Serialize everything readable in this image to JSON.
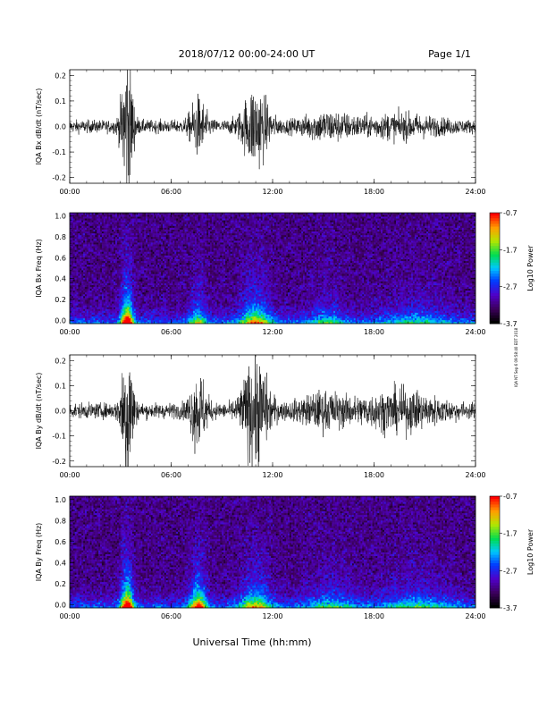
{
  "header": {
    "title": "2018/07/12  00:00-24:00 UT",
    "page": "Page 1/1"
  },
  "side_note": "IQA NT Sep 6 09:58:40 EDT 2018",
  "xlabel": "Universal Time (hh:mm)",
  "chart_data": [
    {
      "type": "line",
      "ylabel": "IQA Bx dB/dt (nT/sec)",
      "xlim": [
        0,
        24
      ],
      "ylim": [
        -0.2,
        0.2
      ],
      "x_ticks": [
        "00:00",
        "06:00",
        "12:00",
        "18:00",
        "24:00"
      ],
      "y_ticks": [
        "0.2",
        "0.1",
        "0.0",
        "-0.1",
        "-0.2"
      ],
      "bursts": [
        {
          "center": 3.4,
          "width": 0.35,
          "amplitude": 0.3
        },
        {
          "center": 7.6,
          "width": 0.5,
          "amplitude": 0.1
        },
        {
          "center": 11.0,
          "width": 0.8,
          "amplitude": 0.15
        },
        {
          "center": 15.2,
          "width": 1.5,
          "amplitude": 0.04
        },
        {
          "center": 19.5,
          "width": 2.5,
          "amplitude": 0.03
        }
      ],
      "baseline_amplitude": 0.025
    },
    {
      "type": "heatmap",
      "ylabel": "IQA Bx Freq (Hz)",
      "xlim": [
        0,
        24
      ],
      "ylim": [
        0.0,
        1.0
      ],
      "x_ticks": [
        "00:00",
        "06:00",
        "12:00",
        "18:00",
        "24:00"
      ],
      "y_ticks": [
        "1.0",
        "0.8",
        "0.6",
        "0.4",
        "0.2",
        "0.0"
      ],
      "colorbar": {
        "ticks": [
          "-0.7",
          "-1.7",
          "-2.7",
          "-3.7"
        ],
        "label": "Log10 Power",
        "range": [
          -3.7,
          -0.7
        ]
      },
      "bursts": [
        {
          "center": 3.4,
          "width": 0.35,
          "strength": 1.0
        },
        {
          "center": 7.6,
          "width": 0.5,
          "strength": 0.4
        },
        {
          "center": 11.0,
          "width": 0.9,
          "strength": 0.55
        },
        {
          "center": 15.2,
          "width": 1.0,
          "strength": 0.25
        },
        {
          "center": 20.5,
          "width": 2.0,
          "strength": 0.2
        }
      ]
    },
    {
      "type": "line",
      "ylabel": "IQA By dB/dt (nT/sec)",
      "xlim": [
        0,
        24
      ],
      "ylim": [
        -0.2,
        0.2
      ],
      "x_ticks": [
        "00:00",
        "06:00",
        "12:00",
        "18:00",
        "24:00"
      ],
      "y_ticks": [
        "0.2",
        "0.1",
        "0.0",
        "-0.1",
        "-0.2"
      ],
      "bursts": [
        {
          "center": 3.4,
          "width": 0.35,
          "amplitude": 0.3
        },
        {
          "center": 7.6,
          "width": 0.5,
          "amplitude": 0.14
        },
        {
          "center": 11.0,
          "width": 0.8,
          "amplitude": 0.2
        },
        {
          "center": 15.0,
          "width": 1.5,
          "amplitude": 0.05
        },
        {
          "center": 19.5,
          "width": 2.5,
          "amplitude": 0.06
        }
      ],
      "baseline_amplitude": 0.03
    },
    {
      "type": "heatmap",
      "ylabel": "IQA By Freq (Hz)",
      "xlim": [
        0,
        24
      ],
      "ylim": [
        0.0,
        1.0
      ],
      "x_ticks": [
        "00:00",
        "06:00",
        "12:00",
        "18:00",
        "24:00"
      ],
      "y_ticks": [
        "1.0",
        "0.8",
        "0.6",
        "0.4",
        "0.2",
        "0.0"
      ],
      "colorbar": {
        "ticks": [
          "-0.7",
          "-1.7",
          "-2.7",
          "-3.7"
        ],
        "label": "Log10 Power",
        "range": [
          -3.7,
          -0.7
        ]
      },
      "bursts": [
        {
          "center": 3.4,
          "width": 0.35,
          "strength": 1.0
        },
        {
          "center": 7.6,
          "width": 0.5,
          "strength": 0.7
        },
        {
          "center": 11.0,
          "width": 0.9,
          "strength": 0.5
        },
        {
          "center": 15.5,
          "width": 1.5,
          "strength": 0.25
        },
        {
          "center": 20.5,
          "width": 2.0,
          "strength": 0.25
        }
      ]
    }
  ]
}
